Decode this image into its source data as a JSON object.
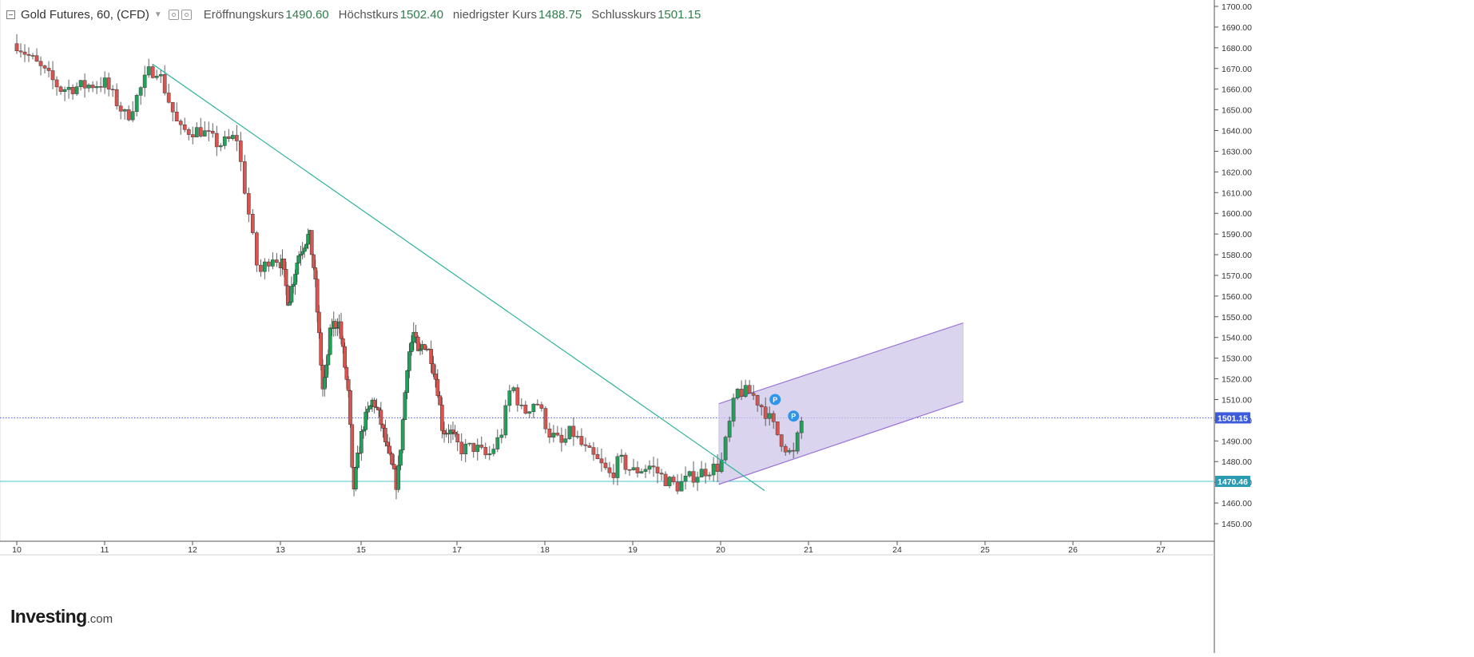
{
  "header": {
    "title": "Gold Futures, 60, (CFD)",
    "open_label": "Eröffnungskurs",
    "open_value": "1490.60",
    "high_label": "Höchstkurs",
    "high_value": "1502.40",
    "low_label": "niedrigster Kurs",
    "low_value": "1488.75",
    "close_label": "Schlusskurs",
    "close_value": "1501.15"
  },
  "branding": {
    "logo_name": "Investing",
    "logo_suffix": ".com"
  },
  "colors": {
    "up_candle": "#22a05a",
    "down_candle": "#d9534f",
    "trendline": "#2db39a",
    "channel_fill": "#cfc6e8",
    "channel_line": "#9b73d6",
    "last_price_line": "#3b5bdb",
    "support_line": "#4fc3d3"
  },
  "chart_data": {
    "type": "candlestick",
    "title": "Gold Futures, 60, (CFD)",
    "ylim": [
      1445,
      1702
    ],
    "y_ticks": [
      "1700.00",
      "1690.00",
      "1680.00",
      "1670.00",
      "1660.00",
      "1650.00",
      "1640.00",
      "1630.00",
      "1620.00",
      "1610.00",
      "1600.00",
      "1590.00",
      "1580.00",
      "1570.00",
      "1560.00",
      "1550.00",
      "1540.00",
      "1530.00",
      "1520.00",
      "1510.00",
      "1500.00",
      "1490.00",
      "1480.00",
      "1470.00",
      "1460.00",
      "1450.00"
    ],
    "x_ticks": [
      "10",
      "11",
      "12",
      "13",
      "15",
      "17",
      "18",
      "19",
      "20",
      "21",
      "24",
      "25",
      "26",
      "27"
    ],
    "grid": false,
    "price_labels": [
      {
        "value": 1501.15,
        "text": "1501.15",
        "kind": "last"
      },
      {
        "value": 1470.46,
        "text": "1470.46",
        "kind": "support"
      }
    ],
    "markers": [
      {
        "day": 20.62,
        "price": 1510,
        "text": "P"
      },
      {
        "day": 20.83,
        "price": 1502,
        "text": "P"
      }
    ],
    "trendline": [
      {
        "day": 11.55,
        "price": 1672
      },
      {
        "day": 20.5,
        "price": 1466
      }
    ],
    "channel": {
      "upper": [
        {
          "day": 19.98,
          "price": 1508
        },
        {
          "day": 24.75,
          "price": 1547
        }
      ],
      "lower": [
        {
          "day": 19.98,
          "price": 1469
        },
        {
          "day": 24.75,
          "price": 1509
        }
      ]
    },
    "anchors": [
      [
        10.0,
        1682
      ],
      [
        10.5,
        1660
      ],
      [
        11.0,
        1663
      ],
      [
        11.25,
        1646
      ],
      [
        11.5,
        1668
      ],
      [
        11.6,
        1670
      ],
      [
        11.85,
        1640
      ],
      [
        12.1,
        1640
      ],
      [
        12.3,
        1633
      ],
      [
        12.5,
        1637
      ],
      [
        12.6,
        1610
      ],
      [
        12.75,
        1570
      ],
      [
        12.9,
        1580
      ],
      [
        13.05,
        1575
      ],
      [
        13.2,
        1557
      ],
      [
        13.45,
        1580
      ],
      [
        13.6,
        1586
      ],
      [
        13.72,
        1590
      ],
      [
        13.85,
        1570
      ],
      [
        14.05,
        1515
      ],
      [
        14.15,
        1525
      ],
      [
        14.25,
        1545
      ],
      [
        14.45,
        1548
      ],
      [
        14.55,
        1533
      ],
      [
        14.7,
        1510
      ],
      [
        14.8,
        1464
      ],
      [
        14.92,
        1482
      ],
      [
        15.05,
        1498
      ],
      [
        15.25,
        1510
      ],
      [
        15.4,
        1500
      ],
      [
        15.55,
        1485
      ],
      [
        15.75,
        1468
      ],
      [
        15.87,
        1500
      ],
      [
        15.97,
        1530
      ],
      [
        16.1,
        1542
      ],
      [
        16.2,
        1530
      ],
      [
        16.3,
        1538
      ],
      [
        16.45,
        1532
      ],
      [
        16.6,
        1515
      ],
      [
        16.7,
        1495
      ],
      [
        16.85,
        1495
      ],
      [
        17.05,
        1486
      ],
      [
        17.2,
        1487
      ],
      [
        17.35,
        1482
      ],
      [
        17.5,
        1493
      ],
      [
        17.62,
        1518
      ],
      [
        17.75,
        1503
      ],
      [
        17.9,
        1510
      ],
      [
        18.05,
        1494
      ],
      [
        18.2,
        1488
      ],
      [
        18.3,
        1495
      ],
      [
        18.45,
        1486
      ],
      [
        18.6,
        1480
      ],
      [
        18.75,
        1473
      ],
      [
        18.85,
        1481
      ],
      [
        19.0,
        1475
      ],
      [
        19.2,
        1478
      ],
      [
        19.35,
        1472
      ],
      [
        19.5,
        1468
      ],
      [
        19.68,
        1473
      ],
      [
        19.84,
        1476
      ],
      [
        20.0,
        1478
      ],
      [
        20.18,
        1514
      ],
      [
        20.35,
        1513
      ],
      [
        20.5,
        1505
      ],
      [
        20.65,
        1493
      ],
      [
        20.82,
        1482
      ],
      [
        20.93,
        1501
      ]
    ]
  }
}
